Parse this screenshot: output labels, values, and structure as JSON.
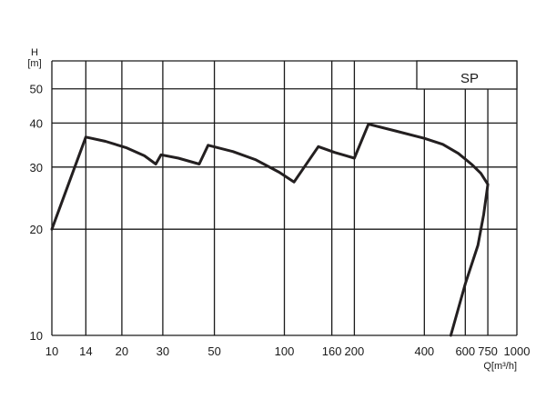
{
  "chart_data": {
    "type": "line",
    "x_scale": "log",
    "y_scale": "log",
    "xlim": [
      10,
      1000
    ],
    "ylim": [
      10,
      60
    ],
    "grid": true,
    "x_ticks": [
      10,
      14,
      20,
      30,
      50,
      100,
      160,
      200,
      400,
      600,
      750,
      1000
    ],
    "x_tick_labels": [
      "10",
      "14",
      "20",
      "30",
      "50",
      "100",
      "160",
      "200",
      "400",
      "600",
      "750",
      "1000"
    ],
    "y_ticks": [
      10,
      20,
      30,
      40,
      50
    ],
    "y_tick_labels": [
      "10",
      "20",
      "30",
      "40",
      "50"
    ],
    "xlabel": "Q[m³/h]",
    "ylabel": "H",
    "ylabel_unit": "[m]",
    "legend": {
      "label": "SP",
      "placement": "top-right"
    },
    "series": [
      {
        "points": [
          {
            "x": 10,
            "y": 20
          },
          {
            "x": 14,
            "y": 36.5
          },
          {
            "x": 17,
            "y": 35.5
          },
          {
            "x": 21,
            "y": 34
          },
          {
            "x": 25,
            "y": 32.3
          },
          {
            "x": 28,
            "y": 30.6
          },
          {
            "x": 29.5,
            "y": 32.5
          },
          {
            "x": 35,
            "y": 31.8
          },
          {
            "x": 43,
            "y": 30.6
          },
          {
            "x": 47,
            "y": 34.6
          },
          {
            "x": 60,
            "y": 33.2
          },
          {
            "x": 75,
            "y": 31.5
          },
          {
            "x": 95,
            "y": 29
          },
          {
            "x": 110,
            "y": 27.2
          },
          {
            "x": 140,
            "y": 34.3
          },
          {
            "x": 165,
            "y": 33
          },
          {
            "x": 200,
            "y": 31.8
          },
          {
            "x": 230,
            "y": 39.7
          },
          {
            "x": 300,
            "y": 38
          },
          {
            "x": 400,
            "y": 36.2
          },
          {
            "x": 480,
            "y": 34.8
          },
          {
            "x": 560,
            "y": 32.8
          },
          {
            "x": 640,
            "y": 30.5
          },
          {
            "x": 700,
            "y": 28.8
          },
          {
            "x": 750,
            "y": 26.8
          },
          {
            "x": 720,
            "y": 22
          },
          {
            "x": 680,
            "y": 18
          },
          {
            "x": 600,
            "y": 14
          },
          {
            "x": 520,
            "y": 10
          }
        ]
      }
    ]
  }
}
